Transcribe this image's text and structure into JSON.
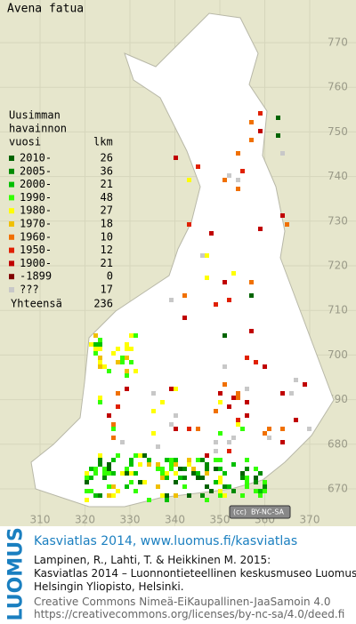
{
  "map": {
    "title": "Avena fatua",
    "legend": {
      "heading": [
        "Uusimman",
        "havainnon",
        "vuosi"
      ],
      "count_heading": "lkm",
      "entries": [
        {
          "label": "2010-",
          "count": 26,
          "color": "#006400"
        },
        {
          "label": "2005-",
          "count": 36,
          "color": "#008a00"
        },
        {
          "label": "2000-",
          "count": 21,
          "color": "#00c000"
        },
        {
          "label": "1990-",
          "count": 48,
          "color": "#33ff00"
        },
        {
          "label": "1980-",
          "count": 27,
          "color": "#ffff00"
        },
        {
          "label": "1970-",
          "count": 18,
          "color": "#f0c000"
        },
        {
          "label": "1960-",
          "count": 10,
          "color": "#f07000"
        },
        {
          "label": "1950-",
          "count": 12,
          "color": "#e02000"
        },
        {
          "label": "1900-",
          "count": 21,
          "color": "#c00000"
        },
        {
          "label": "-1899",
          "count": 0,
          "color": "#800000"
        },
        {
          "label": "???",
          "count": 17,
          "color": "#c8c8c8"
        }
      ],
      "total_label": "Yhteensä",
      "total": 236
    },
    "grid": {
      "northing": [
        770,
        760,
        750,
        740,
        730,
        720,
        710,
        700,
        690,
        680,
        670
      ],
      "easting": [
        310,
        320,
        330,
        340,
        350,
        360,
        370
      ]
    },
    "license_badge": "BY-NC-SA"
  },
  "footer": {
    "logo": "LUOMUS",
    "heading": "Kasviatlas 2014, www.luomus.fi/kasviatlas",
    "citation": [
      "Lampinen, R., Lahti, T. & Heikkinen M. 2015:",
      "Kasviatlas 2014 – Luonnontieteellinen keskusmuseo Luomus,",
      "Helsingin Yliopisto, Helsinki."
    ],
    "license": [
      "Creative Commons Nimeä-EiKaupallinen-JaaSamoin 4.0",
      "https://creativecommons.org/licenses/by-nc-sa/4.0/deed.fi"
    ]
  }
}
